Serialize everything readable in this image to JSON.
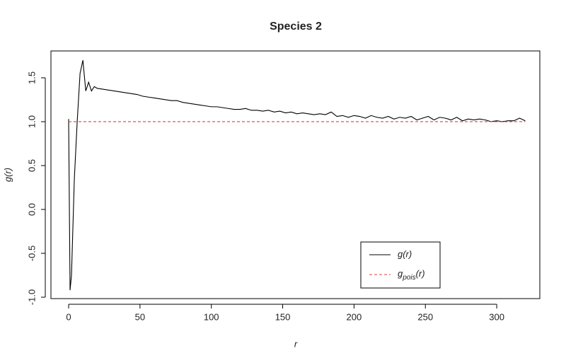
{
  "chart_data": {
    "type": "line",
    "title": "Species 2",
    "x_label": "r",
    "y_label": "g(r)",
    "xlim": [
      -12.4,
      330.2
    ],
    "ylim": [
      -1.016,
      1.806
    ],
    "xticks": [
      0,
      50,
      100,
      150,
      200,
      250,
      300
    ],
    "yticks": [
      {
        "value": -1.0,
        "label": "-1.0"
      },
      -0.5,
      {
        "value": 0.0,
        "label": "0.0"
      },
      0.5,
      {
        "value": 1.0,
        "label": "1.0"
      },
      1.5
    ],
    "legend": "bottom-right",
    "series": [
      {
        "name": "g(r)",
        "color": "#000000",
        "dash": false,
        "x": [
          0,
          1,
          2,
          3,
          4,
          6,
          8,
          10,
          12,
          14,
          16,
          18,
          20,
          24,
          28,
          32,
          36,
          40,
          44,
          48,
          52,
          56,
          60,
          64,
          68,
          72,
          76,
          80,
          84,
          88,
          92,
          96,
          100,
          104,
          108,
          112,
          116,
          120,
          124,
          128,
          132,
          136,
          140,
          144,
          148,
          152,
          156,
          160,
          164,
          168,
          172,
          176,
          180,
          184,
          188,
          192,
          196,
          200,
          204,
          208,
          212,
          216,
          220,
          224,
          228,
          232,
          236,
          240,
          244,
          248,
          252,
          256,
          260,
          264,
          268,
          272,
          276,
          280,
          284,
          288,
          292,
          296,
          300,
          304,
          308,
          312,
          316,
          320
        ],
        "values": [
          1.03,
          -0.92,
          -0.75,
          -0.2,
          0.35,
          1.0,
          1.55,
          1.7,
          1.35,
          1.45,
          1.35,
          1.4,
          1.38,
          1.37,
          1.36,
          1.35,
          1.34,
          1.33,
          1.32,
          1.31,
          1.29,
          1.28,
          1.27,
          1.26,
          1.25,
          1.24,
          1.24,
          1.22,
          1.21,
          1.2,
          1.19,
          1.18,
          1.17,
          1.17,
          1.16,
          1.15,
          1.14,
          1.14,
          1.15,
          1.13,
          1.13,
          1.12,
          1.13,
          1.11,
          1.12,
          1.1,
          1.11,
          1.09,
          1.1,
          1.09,
          1.08,
          1.09,
          1.08,
          1.11,
          1.06,
          1.07,
          1.05,
          1.07,
          1.06,
          1.04,
          1.07,
          1.05,
          1.04,
          1.06,
          1.03,
          1.05,
          1.04,
          1.06,
          1.02,
          1.04,
          1.06,
          1.02,
          1.05,
          1.04,
          1.02,
          1.05,
          1.01,
          1.03,
          1.02,
          1.03,
          1.02,
          1.0,
          1.01,
          1.0,
          1.01,
          1.01,
          1.04,
          1.01
        ]
      },
      {
        "name": "g_pois(r)",
        "color": "#e0403a",
        "dash": true,
        "x": [
          0,
          320
        ],
        "values": [
          1,
          1
        ]
      }
    ]
  }
}
